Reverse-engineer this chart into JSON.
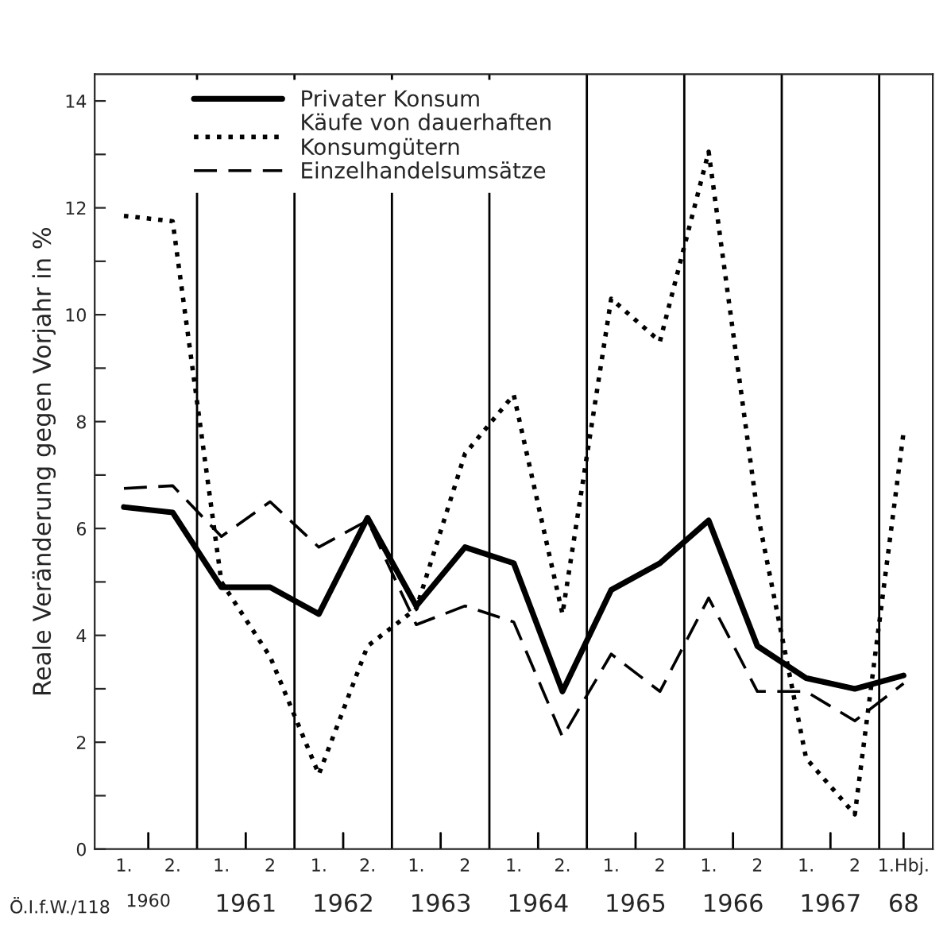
{
  "chart_data": {
    "type": "line",
    "ylabel": "Reale Veränderung gegen Vorjahr in %",
    "categories": [
      "1.",
      "2.",
      "1.",
      "2",
      "1.",
      "2.",
      "1.",
      "2",
      "1.",
      "2.",
      "1.",
      "2",
      "1.",
      "2",
      "1.",
      "2",
      "1.Hbj."
    ],
    "series": [
      {
        "name": "Privater Konsum",
        "color": "#000000",
        "line_style": "solid",
        "values": [
          6.4,
          6.3,
          4.9,
          4.9,
          4.4,
          6.2,
          4.55,
          5.65,
          5.35,
          2.95,
          4.85,
          5.35,
          6.15,
          3.8,
          3.2,
          3.0,
          3.25
        ]
      },
      {
        "name": "Käufe von dauerhaften\nKonsumgütern",
        "color": "#000000",
        "line_style": "dotted",
        "values": [
          11.85,
          11.75,
          5.0,
          3.6,
          1.4,
          3.8,
          4.5,
          7.4,
          8.5,
          4.4,
          10.3,
          9.5,
          13.05,
          6.3,
          1.7,
          0.65,
          7.8
        ]
      },
      {
        "name": "Einzelhandelsumsätze",
        "color": "#000000",
        "line_style": "dashed",
        "values": [
          6.75,
          6.8,
          5.85,
          6.5,
          5.65,
          6.15,
          4.2,
          4.55,
          4.25,
          2.1,
          3.65,
          2.95,
          4.7,
          2.95,
          2.95,
          2.4,
          3.1
        ]
      }
    ],
    "ylim": [
      0,
      14.5
    ],
    "yticks": [
      0,
      {
        "value": 1,
        "label": null
      },
      2,
      {
        "value": 3,
        "label": null
      },
      4,
      {
        "value": 5,
        "label": null
      },
      6,
      {
        "value": 7,
        "label": null
      },
      8,
      {
        "value": 9,
        "label": null
      },
      10,
      {
        "value": 11,
        "label": null
      },
      12,
      {
        "value": 13,
        "label": null
      },
      14
    ],
    "grid": "x",
    "legend": "top left",
    "marker": "none",
    "annotations": [
      "Ö.I.f.W./118",
      "1960",
      "1961",
      "1962",
      "1963",
      "1964",
      "1965",
      "1966",
      "1967",
      "68"
    ]
  }
}
